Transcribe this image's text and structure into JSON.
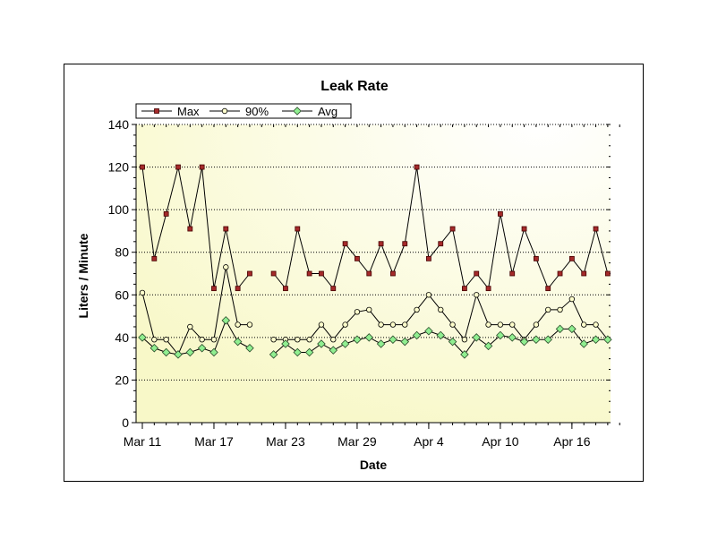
{
  "chart_data": {
    "type": "line",
    "title": "Leak Rate",
    "xlabel": "Date",
    "ylabel": "Liters / Minute",
    "ylim": [
      0,
      140
    ],
    "yticks": [
      0,
      20,
      40,
      60,
      80,
      100,
      120,
      140
    ],
    "grid": "horizontal dotted",
    "legend_position": "top-left",
    "plot_background": "light yellow radial gradient",
    "x_tick_labels": [
      "Mar 11",
      "Mar 17",
      "Mar 23",
      "Mar 29",
      "Apr 4",
      "Apr 10",
      "Apr 16"
    ],
    "x": [
      "Mar 11",
      "Mar 12",
      "Mar 13",
      "Mar 14",
      "Mar 15",
      "Mar 16",
      "Mar 17",
      "Mar 18",
      "Mar 19",
      "Mar 20",
      "Mar 21",
      "Mar 22",
      "Mar 23",
      "Mar 24",
      "Mar 25",
      "Mar 26",
      "Mar 27",
      "Mar 28",
      "Mar 29",
      "Mar 30",
      "Mar 31",
      "Apr 1",
      "Apr 2",
      "Apr 3",
      "Apr 4",
      "Apr 5",
      "Apr 6",
      "Apr 7",
      "Apr 8",
      "Apr 9",
      "Apr 10",
      "Apr 11",
      "Apr 12",
      "Apr 13",
      "Apr 14",
      "Apr 15",
      "Apr 16",
      "Apr 17",
      "Apr 18",
      "Apr 19",
      "Apr 20"
    ],
    "series": [
      {
        "name": "Max",
        "color": "#a52a2a",
        "marker": "square",
        "values": [
          120,
          77,
          98,
          120,
          91,
          120,
          63,
          91,
          63,
          70,
          null,
          70,
          63,
          91,
          70,
          70,
          63,
          84,
          77,
          70,
          84,
          70,
          84,
          120,
          77,
          84,
          91,
          63,
          70,
          63,
          98,
          70,
          91,
          77,
          63,
          70,
          77,
          70,
          91,
          70,
          null
        ]
      },
      {
        "name": "90%",
        "color": "#ffffcc",
        "marker": "circle",
        "values": [
          61,
          39,
          39,
          32,
          45,
          39,
          39,
          73,
          46,
          46,
          null,
          39,
          39,
          39,
          39,
          46,
          39,
          46,
          52,
          53,
          46,
          46,
          46,
          53,
          60,
          53,
          46,
          39,
          60,
          46,
          46,
          46,
          39,
          46,
          53,
          53,
          58,
          46,
          46,
          39,
          null
        ]
      },
      {
        "name": "Avg",
        "color": "#90ee90",
        "marker": "diamond",
        "values": [
          40,
          35,
          33,
          32,
          33,
          35,
          33,
          48,
          38,
          35,
          null,
          32,
          37,
          33,
          33,
          37,
          34,
          37,
          39,
          40,
          37,
          39,
          38,
          41,
          43,
          41,
          38,
          32,
          40,
          36,
          41,
          40,
          38,
          39,
          39,
          44,
          44,
          37,
          39,
          39,
          null
        ]
      }
    ]
  }
}
